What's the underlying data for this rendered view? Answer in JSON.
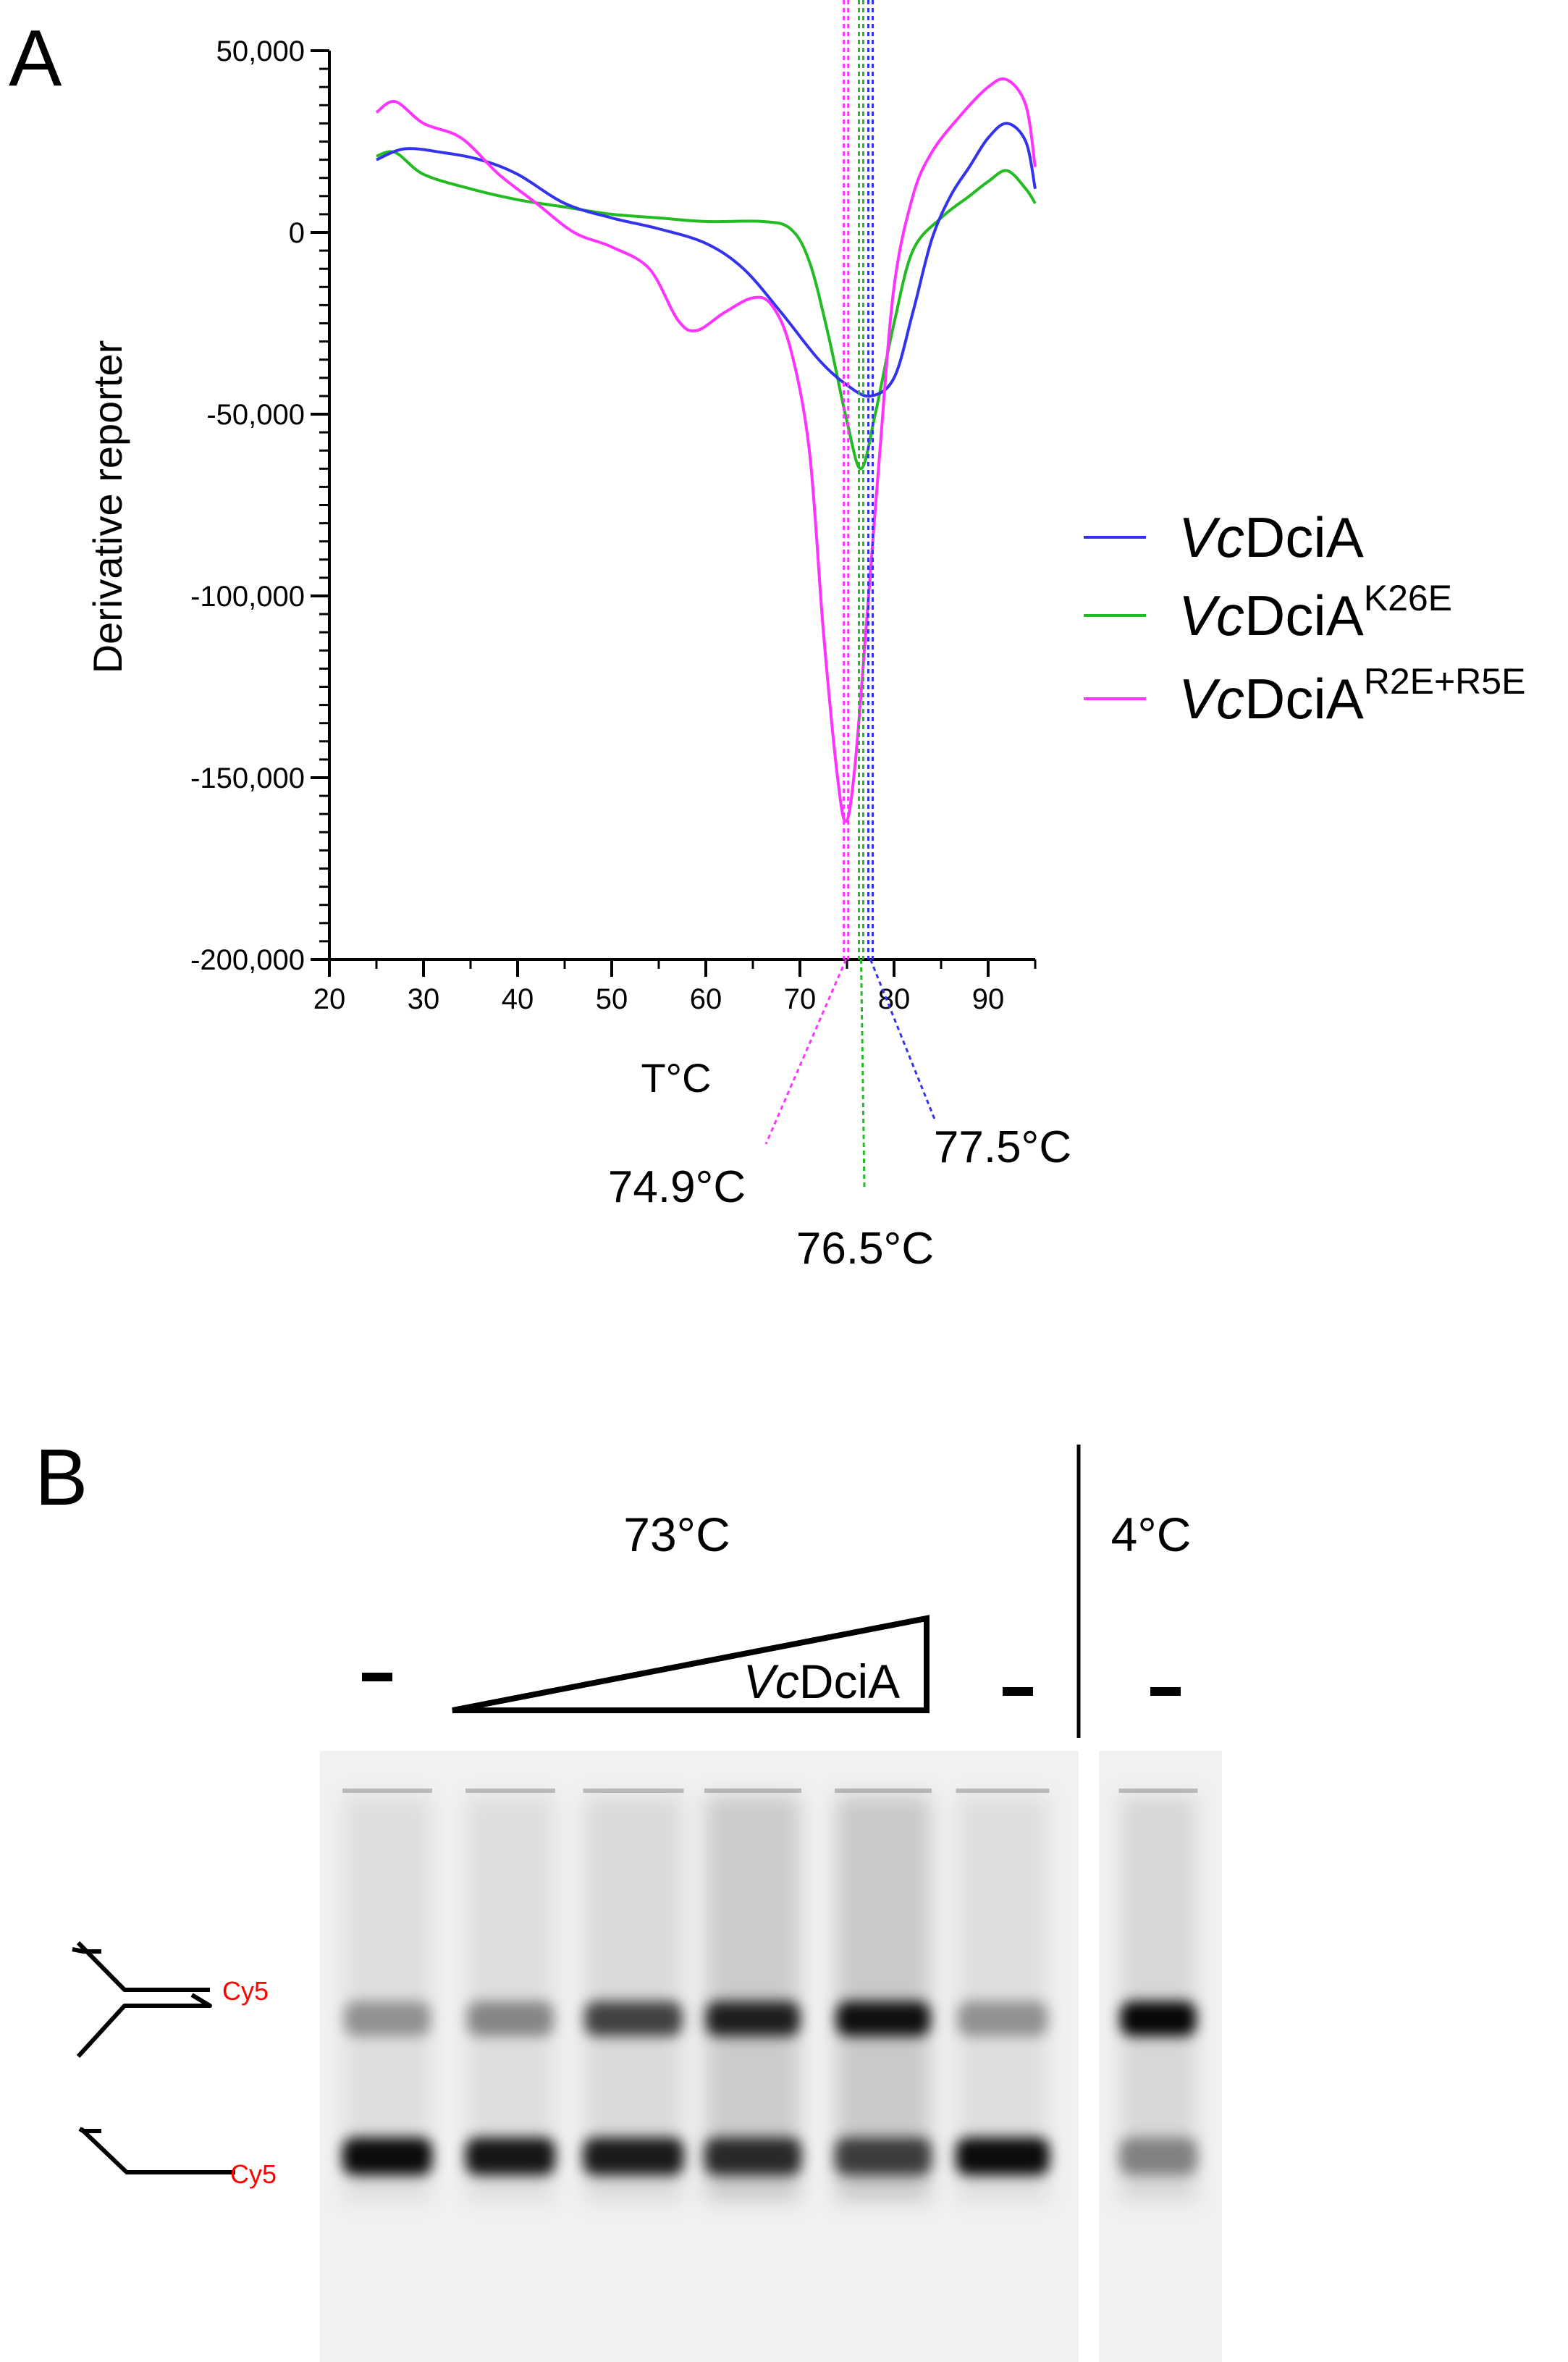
{
  "panels": {
    "a": "A",
    "b": "B"
  },
  "chart_data": {
    "type": "line",
    "title": "",
    "xlabel": "T°C",
    "ylabel": "Derivative reporter",
    "xlim": [
      20,
      95
    ],
    "ylim": [
      -200000,
      50000
    ],
    "x_ticks": [
      20,
      30,
      40,
      50,
      60,
      70,
      80,
      90
    ],
    "y_ticks": [
      50000,
      0,
      -50000,
      -100000,
      -150000,
      -200000
    ],
    "y_tick_labels": [
      "50,000",
      "0",
      "-50,000",
      "-100,000",
      "-150,000",
      "-200,000"
    ],
    "legend_position": "right",
    "series": [
      {
        "name": "VcDciA",
        "name_italic": "Vc",
        "name_rest": "DciA",
        "name_sup": "",
        "color": "#3333ee",
        "tm": 77.5,
        "tm_label": "77.5°C",
        "points": [
          [
            25,
            20000
          ],
          [
            28,
            23000
          ],
          [
            32,
            22000
          ],
          [
            36,
            20000
          ],
          [
            40,
            16000
          ],
          [
            45,
            8000
          ],
          [
            50,
            4000
          ],
          [
            55,
            1000
          ],
          [
            60,
            -3000
          ],
          [
            64,
            -10000
          ],
          [
            68,
            -22000
          ],
          [
            72,
            -35000
          ],
          [
            75,
            -42000
          ],
          [
            77.5,
            -45000
          ],
          [
            80,
            -40000
          ],
          [
            82,
            -22000
          ],
          [
            84,
            -2000
          ],
          [
            86,
            10000
          ],
          [
            88,
            18000
          ],
          [
            90,
            26000
          ],
          [
            92,
            30000
          ],
          [
            94,
            25000
          ],
          [
            95,
            12000
          ]
        ]
      },
      {
        "name": "VcDciA K26E",
        "name_italic": "Vc",
        "name_rest": "DciA",
        "name_sup": "K26E",
        "color": "#22bb22",
        "tm": 76.5,
        "tm_label": "76.5°C",
        "points": [
          [
            25,
            21000
          ],
          [
            27,
            22000
          ],
          [
            30,
            16000
          ],
          [
            35,
            12000
          ],
          [
            40,
            9000
          ],
          [
            45,
            7000
          ],
          [
            50,
            5000
          ],
          [
            55,
            4000
          ],
          [
            60,
            3000
          ],
          [
            66,
            3000
          ],
          [
            69,
            1000
          ],
          [
            71,
            -8000
          ],
          [
            73,
            -28000
          ],
          [
            75,
            -52000
          ],
          [
            76.5,
            -65000
          ],
          [
            78,
            -50000
          ],
          [
            80,
            -25000
          ],
          [
            82,
            -5000
          ],
          [
            85,
            4000
          ],
          [
            88,
            10000
          ],
          [
            90,
            14000
          ],
          [
            92,
            17000
          ],
          [
            94,
            12000
          ],
          [
            95,
            8000
          ]
        ]
      },
      {
        "name": "VcDciA R2E+R5E",
        "name_italic": "Vc",
        "name_rest": "DciA",
        "name_sup": "R2E+R5E",
        "color": "#ff33ff",
        "tm": 74.9,
        "tm_label": "74.9°C",
        "points": [
          [
            25,
            33000
          ],
          [
            27,
            36000
          ],
          [
            30,
            30000
          ],
          [
            34,
            26000
          ],
          [
            38,
            16000
          ],
          [
            42,
            8000
          ],
          [
            46,
            0
          ],
          [
            50,
            -4000
          ],
          [
            54,
            -10000
          ],
          [
            57,
            -24000
          ],
          [
            59,
            -27000
          ],
          [
            62,
            -22000
          ],
          [
            65,
            -18000
          ],
          [
            67,
            -20000
          ],
          [
            69,
            -32000
          ],
          [
            71,
            -60000
          ],
          [
            72.5,
            -110000
          ],
          [
            74,
            -150000
          ],
          [
            74.9,
            -162000
          ],
          [
            75.8,
            -148000
          ],
          [
            77,
            -110000
          ],
          [
            78.5,
            -60000
          ],
          [
            80,
            -15000
          ],
          [
            82,
            10000
          ],
          [
            84,
            22000
          ],
          [
            87,
            32000
          ],
          [
            90,
            40000
          ],
          [
            92,
            42000
          ],
          [
            94,
            35000
          ],
          [
            95,
            18000
          ]
        ]
      }
    ]
  },
  "gel": {
    "temp_high": "73°C",
    "temp_low": "4°C",
    "protein_italic": "Vc",
    "protein_rest": "DciA",
    "minus_label": "−",
    "cy5_label": "Cy5",
    "lanes": [
      {
        "condition": "73°C",
        "protein": "none",
        "fork_band": 0.35,
        "ss_band": 0.95
      },
      {
        "condition": "73°C",
        "protein": "VcDciA",
        "fork_band": 0.4,
        "ss_band": 0.9
      },
      {
        "condition": "73°C",
        "protein": "VcDciA",
        "fork_band": 0.7,
        "ss_band": 0.88
      },
      {
        "condition": "73°C",
        "protein": "VcDciA",
        "fork_band": 0.85,
        "ss_band": 0.8
      },
      {
        "condition": "73°C",
        "protein": "VcDciA",
        "fork_band": 0.92,
        "ss_band": 0.7
      },
      {
        "condition": "73°C",
        "protein": "none",
        "fork_band": 0.35,
        "ss_band": 0.95
      },
      {
        "condition": "4°C",
        "protein": "none",
        "fork_band": 0.97,
        "ss_band": 0.4
      }
    ]
  }
}
